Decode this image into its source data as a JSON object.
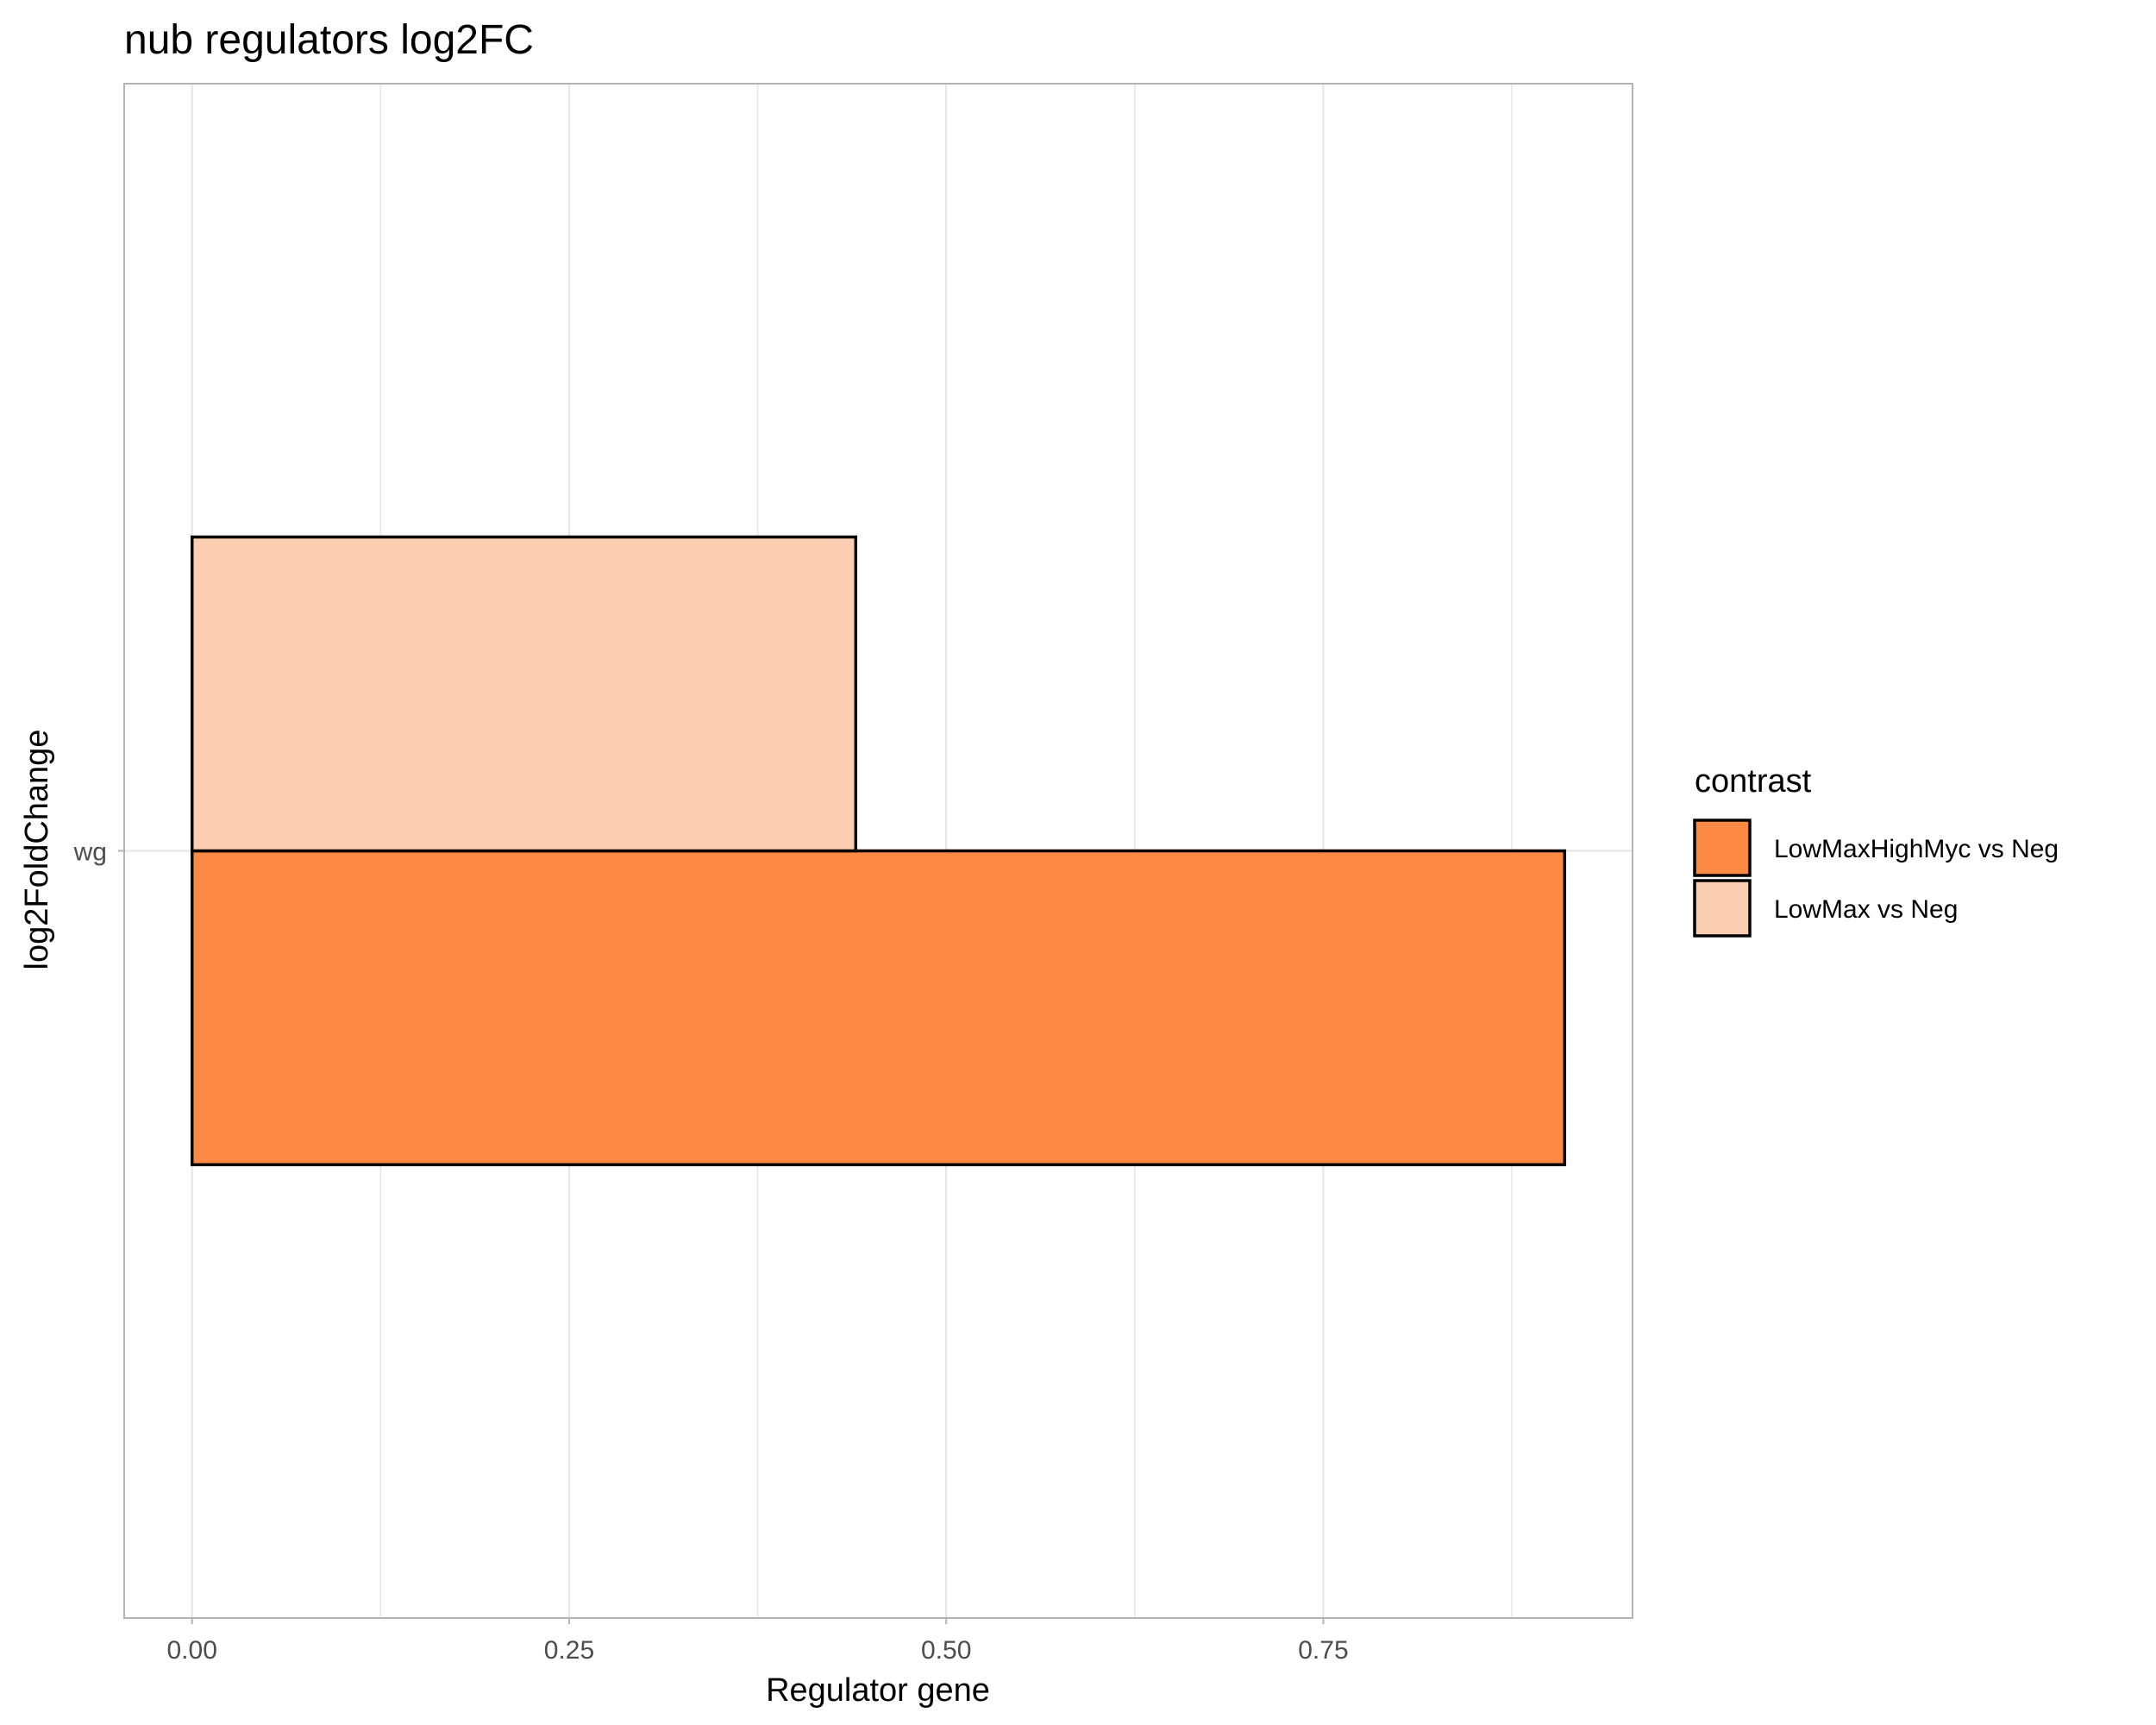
{
  "chart_data": {
    "type": "bar",
    "orientation": "horizontal",
    "position": "dodge",
    "title": "nub regulators log2FC",
    "xlabel": "Regulator gene",
    "ylabel": "log2FoldChange",
    "categories": [
      "wg"
    ],
    "xlim": [
      -0.045,
      0.955
    ],
    "x_ticks": [
      {
        "value": 0.0,
        "label": "0.00"
      },
      {
        "value": 0.25,
        "label": "0.25"
      },
      {
        "value": 0.5,
        "label": "0.50"
      },
      {
        "value": 0.75,
        "label": "0.75"
      }
    ],
    "x_minor_ticks": [
      0.125,
      0.375,
      0.625,
      0.875
    ],
    "grid": true,
    "legend": {
      "title": "contrast",
      "position": "right"
    },
    "series": [
      {
        "name": "LowMaxHighMyc vs Neg",
        "values": [
          0.91
        ],
        "color": "#FC8A44"
      },
      {
        "name": "LowMax vs Neg",
        "values": [
          0.44
        ],
        "color": "#FCCEB2"
      }
    ],
    "colors": {
      "panel_border": "#B3B3B3",
      "grid": "#E5E5E5",
      "bar_outline": "#000000"
    }
  }
}
